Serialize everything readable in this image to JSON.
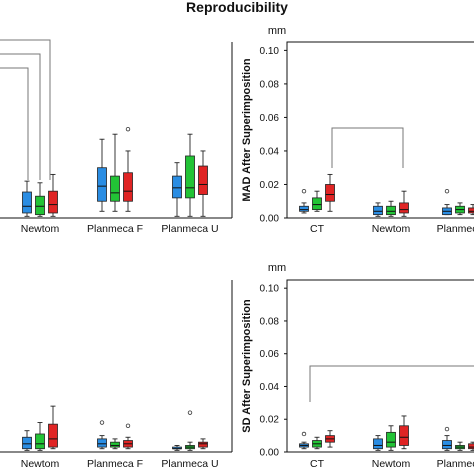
{
  "figure_title": "Reproducibility",
  "colors": {
    "blue": "#2a8de3",
    "green": "#22c336",
    "red": "#e02424",
    "frame": "#111111",
    "bracket": "#777777"
  },
  "chart_data": [
    {
      "panel": "top-left",
      "type": "box",
      "title": "",
      "unit": "",
      "ylabel": "",
      "ylim": [
        0,
        0.105
      ],
      "yticks": [],
      "categories": [
        "Newtom",
        "Planmeca F",
        "Planmeca U"
      ],
      "series_colors": [
        "blue",
        "green",
        "red"
      ],
      "boxes": [
        [
          {
            "min": 0.001,
            "q1": 0.003,
            "median": 0.007,
            "q3": 0.0155,
            "max": 0.022,
            "outliers": []
          },
          {
            "min": 0.001,
            "q1": 0.002,
            "median": 0.007,
            "q3": 0.013,
            "max": 0.021,
            "outliers": []
          },
          {
            "min": 0.001,
            "q1": 0.003,
            "median": 0.008,
            "q3": 0.016,
            "max": 0.026,
            "outliers": []
          }
        ],
        [
          {
            "min": 0.004,
            "q1": 0.01,
            "median": 0.019,
            "q3": 0.03,
            "max": 0.047,
            "outliers": []
          },
          {
            "min": 0.004,
            "q1": 0.01,
            "median": 0.015,
            "q3": 0.025,
            "max": 0.05,
            "outliers": []
          },
          {
            "min": 0.004,
            "q1": 0.01,
            "median": 0.016,
            "q3": 0.027,
            "max": 0.04,
            "outliers": [
              0.053
            ]
          }
        ],
        [
          {
            "min": 0.001,
            "q1": 0.012,
            "median": 0.018,
            "q3": 0.025,
            "max": 0.033,
            "outliers": []
          },
          {
            "min": 0.001,
            "q1": 0.012,
            "median": 0.018,
            "q3": 0.037,
            "max": 0.05,
            "outliers": []
          },
          {
            "min": 0.001,
            "q1": 0.014,
            "median": 0.02,
            "q3": 0.031,
            "max": 0.04,
            "outliers": []
          }
        ]
      ]
    },
    {
      "panel": "top-right",
      "type": "box",
      "title": "",
      "unit": "mm",
      "ylabel": "MAD After Superimposition",
      "ylim": [
        0,
        0.105
      ],
      "yticks": [
        "0.00",
        "0.02",
        "0.04",
        "0.06",
        "0.08",
        "0.10"
      ],
      "categories": [
        "CT",
        "Newtom",
        "Planmeca"
      ],
      "series_colors": [
        "blue",
        "green",
        "red"
      ],
      "boxes": [
        [
          {
            "min": 0.003,
            "q1": 0.004,
            "median": 0.005,
            "q3": 0.007,
            "max": 0.009,
            "outliers": [
              0.016
            ]
          },
          {
            "min": 0.004,
            "q1": 0.005,
            "median": 0.008,
            "q3": 0.012,
            "max": 0.016,
            "outliers": []
          },
          {
            "min": 0.004,
            "q1": 0.01,
            "median": 0.014,
            "q3": 0.02,
            "max": 0.026,
            "outliers": []
          }
        ],
        [
          {
            "min": 0.001,
            "q1": 0.002,
            "median": 0.004,
            "q3": 0.007,
            "max": 0.009,
            "outliers": []
          },
          {
            "min": 0.001,
            "q1": 0.002,
            "median": 0.004,
            "q3": 0.007,
            "max": 0.01,
            "outliers": []
          },
          {
            "min": 0.001,
            "q1": 0.003,
            "median": 0.005,
            "q3": 0.009,
            "max": 0.016,
            "outliers": []
          }
        ],
        [
          {
            "min": 0.002,
            "q1": 0.002,
            "median": 0.004,
            "q3": 0.006,
            "max": 0.008,
            "outliers": [
              0.016
            ]
          },
          {
            "min": 0.002,
            "q1": 0.003,
            "median": 0.005,
            "q3": 0.007,
            "max": 0.009,
            "outliers": []
          },
          {
            "min": 0.002,
            "q1": 0.003,
            "median": 0.004,
            "q3": 0.006,
            "max": 0.008,
            "outliers": []
          }
        ]
      ]
    },
    {
      "panel": "bottom-left",
      "type": "box",
      "title": "",
      "unit": "",
      "ylabel": "",
      "ylim": [
        0,
        0.105
      ],
      "yticks": [],
      "categories": [
        "Newtom",
        "Planmeca F",
        "Planmeca U"
      ],
      "series_colors": [
        "blue",
        "green",
        "red"
      ],
      "boxes": [
        [
          {
            "min": 0.001,
            "q1": 0.002,
            "median": 0.005,
            "q3": 0.009,
            "max": 0.013,
            "outliers": []
          },
          {
            "min": 0.001,
            "q1": 0.002,
            "median": 0.005,
            "q3": 0.011,
            "max": 0.018,
            "outliers": []
          },
          {
            "min": 0.002,
            "q1": 0.003,
            "median": 0.008,
            "q3": 0.017,
            "max": 0.028,
            "outliers": []
          }
        ],
        [
          {
            "min": 0.002,
            "q1": 0.003,
            "median": 0.005,
            "q3": 0.008,
            "max": 0.01,
            "outliers": [
              0.018
            ]
          },
          {
            "min": 0.002,
            "q1": 0.003,
            "median": 0.004,
            "q3": 0.006,
            "max": 0.008,
            "outliers": []
          },
          {
            "min": 0.002,
            "q1": 0.003,
            "median": 0.005,
            "q3": 0.007,
            "max": 0.009,
            "outliers": [
              0.016
            ]
          }
        ],
        [
          {
            "min": 0.001,
            "q1": 0.002,
            "median": 0.002,
            "q3": 0.003,
            "max": 0.004,
            "outliers": []
          },
          {
            "min": 0.001,
            "q1": 0.002,
            "median": 0.003,
            "q3": 0.004,
            "max": 0.006,
            "outliers": [
              0.024
            ]
          },
          {
            "min": 0.002,
            "q1": 0.003,
            "median": 0.005,
            "q3": 0.006,
            "max": 0.008,
            "outliers": []
          }
        ]
      ]
    },
    {
      "panel": "bottom-right",
      "type": "box",
      "title": "",
      "unit": "mm",
      "ylabel": "SD After Superimposition",
      "ylim": [
        0,
        0.105
      ],
      "yticks": [
        "0.00",
        "0.02",
        "0.04",
        "0.06",
        "0.08",
        "0.10"
      ],
      "categories": [
        "CT",
        "Newtom",
        "Planmeca"
      ],
      "series_colors": [
        "blue",
        "green",
        "red"
      ],
      "boxes": [
        [
          {
            "min": 0.002,
            "q1": 0.003,
            "median": 0.004,
            "q3": 0.005,
            "max": 0.006,
            "outliers": [
              0.011
            ]
          },
          {
            "min": 0.002,
            "q1": 0.003,
            "median": 0.005,
            "q3": 0.007,
            "max": 0.009,
            "outliers": []
          },
          {
            "min": 0.003,
            "q1": 0.006,
            "median": 0.008,
            "q3": 0.01,
            "max": 0.013,
            "outliers": []
          }
        ],
        [
          {
            "min": 0.001,
            "q1": 0.002,
            "median": 0.004,
            "q3": 0.008,
            "max": 0.01,
            "outliers": []
          },
          {
            "min": 0.001,
            "q1": 0.003,
            "median": 0.006,
            "q3": 0.012,
            "max": 0.016,
            "outliers": []
          },
          {
            "min": 0.002,
            "q1": 0.004,
            "median": 0.009,
            "q3": 0.016,
            "max": 0.022,
            "outliers": []
          }
        ],
        [
          {
            "min": 0.001,
            "q1": 0.002,
            "median": 0.004,
            "q3": 0.007,
            "max": 0.01,
            "outliers": [
              0.014
            ]
          },
          {
            "min": 0.001,
            "q1": 0.002,
            "median": 0.003,
            "q3": 0.004,
            "max": 0.006,
            "outliers": []
          },
          {
            "min": 0.001,
            "q1": 0.002,
            "median": 0.003,
            "q3": 0.005,
            "max": 0.006,
            "outliers": []
          }
        ]
      ]
    }
  ]
}
